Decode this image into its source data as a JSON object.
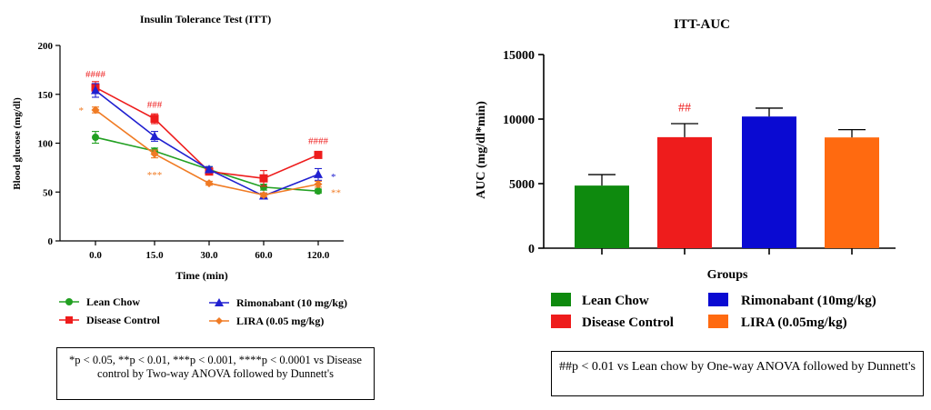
{
  "colors": {
    "lean": "#22a022",
    "disease": "#ee1c1c",
    "rimonabant": "#2020d0",
    "lira": "#f07b24",
    "rimonabant_bar": "#0a0ad2",
    "lira_bar": "#ff6a10",
    "lean_bar": "#0e8a0e"
  },
  "left_chart": {
    "title": "Insulin Tolerance Test (ITT)",
    "xlabel": "Time (min)",
    "ylabel": "Blood glucose (mg/dl)",
    "legend": {
      "lean": "Lean Chow",
      "disease": "Disease Control",
      "rimonabant": "Rimonabant (10 mg/kg)",
      "lira": "LIRA (0.05 mg/kg)"
    },
    "note": "*p < 0.05, **p < 0.01, ***p < 0.001, ****p < 0.0001 vs Disease control by Two-way ANOVA followed by Dunnett's"
  },
  "right_chart": {
    "title": "ITT-AUC",
    "xlabel": "Groups",
    "ylabel": "AUC (mg/dl*min)",
    "legend": {
      "lean": "Lean Chow",
      "disease": "Disease Control",
      "rimonabant": "Rimonabant (10mg/kg)",
      "lira": "LIRA (0.05mg/kg)"
    },
    "note": "##p < 0.01 vs Lean chow  by One-way ANOVA followed by Dunnett's"
  },
  "chart_data": [
    {
      "type": "line",
      "title": "Insulin Tolerance Test (ITT)",
      "xlabel": "Time (min)",
      "ylabel": "Blood glucose (mg/dl)",
      "x": [
        "0.0",
        "15.0",
        "30.0",
        "60.0",
        "120.0"
      ],
      "ylim": [
        0,
        200
      ],
      "yticks": [
        0,
        50,
        100,
        150,
        200
      ],
      "series": [
        {
          "name": "Lean Chow",
          "key": "lean",
          "marker": "circle",
          "values": [
            106,
            92,
            73,
            55,
            51
          ],
          "errors": [
            6,
            3,
            3,
            3,
            2
          ]
        },
        {
          "name": "Disease Control",
          "key": "disease",
          "marker": "square",
          "values": [
            157,
            125,
            71,
            64,
            88
          ],
          "errors": [
            6,
            5,
            3,
            8,
            3
          ]
        },
        {
          "name": "Rimonabant (10 mg/kg)",
          "key": "rimonabant",
          "marker": "triangle",
          "values": [
            154,
            107,
            73,
            46,
            68
          ],
          "errors": [
            7,
            5,
            3,
            3,
            6
          ]
        },
        {
          "name": "LIRA (0.05 mg/kg)",
          "key": "lira",
          "marker": "diamond",
          "values": [
            134,
            89,
            59,
            47,
            58
          ],
          "errors": [
            3,
            4,
            2,
            2,
            3
          ]
        }
      ],
      "annotations": [
        {
          "text": "####",
          "x": "0.0",
          "y": 171,
          "key": "disease"
        },
        {
          "text": "###",
          "x": "15.0",
          "y": 140,
          "key": "disease"
        },
        {
          "text": "####",
          "x": "120.0",
          "y": 103,
          "key": "disease"
        },
        {
          "text": "*",
          "x": "0.0",
          "y": 134,
          "key": "lira",
          "side": "left"
        },
        {
          "text": "***",
          "x": "15.0",
          "y": 68,
          "key": "lira"
        },
        {
          "text": "*",
          "x": "120.0",
          "y": 66,
          "key": "rimonabant",
          "side": "right"
        },
        {
          "text": "**",
          "x": "120.0",
          "y": 50,
          "key": "lira",
          "side": "right"
        }
      ]
    },
    {
      "type": "bar",
      "title": "ITT-AUC",
      "xlabel": "Groups",
      "ylabel": "AUC (mg/dl*min)",
      "categories": [
        "Lean Chow",
        "Disease Control",
        "Rimonabant (10mg/kg)",
        "LIRA (0.05mg/kg)"
      ],
      "keys": [
        "lean_bar",
        "disease",
        "rimonabant_bar",
        "lira_bar"
      ],
      "values": [
        4850,
        8600,
        10200,
        8580
      ],
      "errors": [
        850,
        1050,
        650,
        600
      ],
      "ylim": [
        0,
        15000
      ],
      "yticks": [
        0,
        5000,
        10000,
        15000
      ],
      "annotations": [
        {
          "text": "##",
          "category": "Disease Control",
          "y": 10800,
          "key": "disease"
        }
      ]
    }
  ]
}
